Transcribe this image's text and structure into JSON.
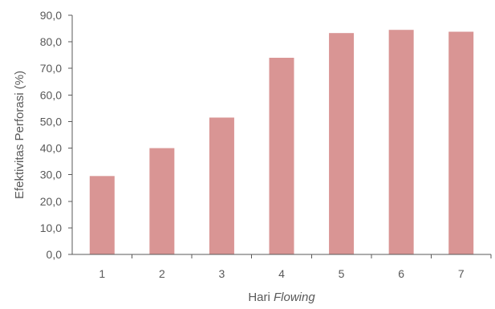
{
  "chart_data": {
    "type": "bar",
    "categories": [
      "1",
      "2",
      "3",
      "4",
      "5",
      "6",
      "7"
    ],
    "values": [
      29.5,
      40.0,
      51.5,
      74.0,
      83.3,
      84.5,
      83.8
    ],
    "ylabel": "Efektivitas Perforasi (%)",
    "xlabel": "Hari Flowing",
    "xlabel_parts": {
      "plain": "Hari ",
      "italic": "Flowing"
    },
    "ylim": [
      0,
      90
    ],
    "yticks": [
      "0,0",
      "10,0",
      "20,0",
      "30,0",
      "40,0",
      "50,0",
      "60,0",
      "70,0",
      "80,0",
      "90,0"
    ],
    "grid": false,
    "bar_color": "#D99594"
  }
}
